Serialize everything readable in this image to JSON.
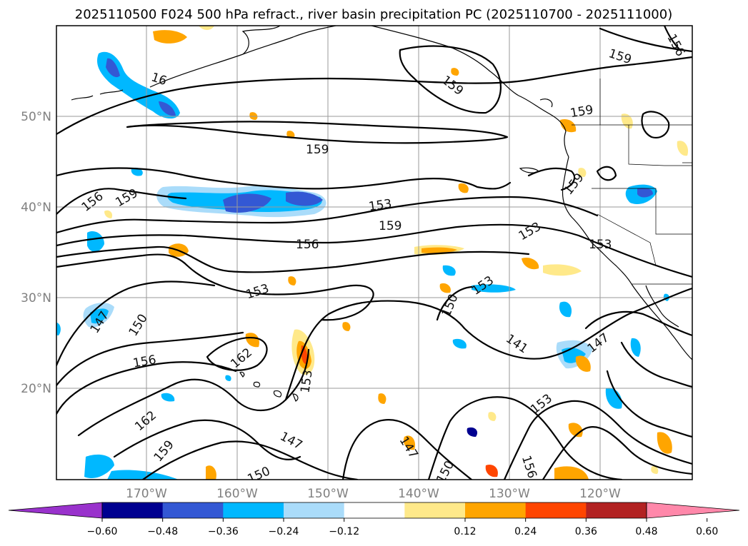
{
  "title": "2025110500 F024 500 hPa refract., river basin precipitation PC (2025110700 - 2025111000)",
  "latitude_labels": [
    "50°N",
    "40°N",
    "30°N",
    "20°N"
  ],
  "longitude_labels": [
    "170°W",
    "160°W",
    "150°W",
    "140°W",
    "130°W",
    "120°W"
  ],
  "colorbar": {
    "ticks": [
      "−0.60",
      "−0.48",
      "−0.36",
      "−0.24",
      "−0.12",
      "0.12",
      "0.24",
      "0.36",
      "0.48",
      "0.60"
    ],
    "colors": [
      "#9932cc",
      "#000090",
      "#3358d4",
      "#00b8ff",
      "#aadcfa",
      "#ffffff",
      "#ffe98a",
      "#ffa500",
      "#ff4500",
      "#b22222",
      "#ff88aa"
    ]
  },
  "contour_labels": [
    {
      "text": "159"
    },
    {
      "text": "156"
    },
    {
      "text": "16"
    },
    {
      "text": "159"
    },
    {
      "text": "159"
    },
    {
      "text": "159"
    },
    {
      "text": "156"
    },
    {
      "text": "159"
    },
    {
      "text": "153"
    },
    {
      "text": "159"
    },
    {
      "text": "159"
    },
    {
      "text": "153"
    },
    {
      "text": "156"
    },
    {
      "text": "153"
    },
    {
      "text": "153"
    },
    {
      "text": "153"
    },
    {
      "text": "150"
    },
    {
      "text": "147"
    },
    {
      "text": "150"
    },
    {
      "text": "162"
    },
    {
      "text": "156"
    },
    {
      "text": "153"
    },
    {
      "text": "141"
    },
    {
      "text": "147"
    },
    {
      "text": "162"
    },
    {
      "text": "159"
    },
    {
      "text": "153"
    },
    {
      "text": "147"
    },
    {
      "text": "147"
    },
    {
      "text": "150"
    },
    {
      "text": "156"
    },
    {
      "text": "150"
    }
  ]
}
